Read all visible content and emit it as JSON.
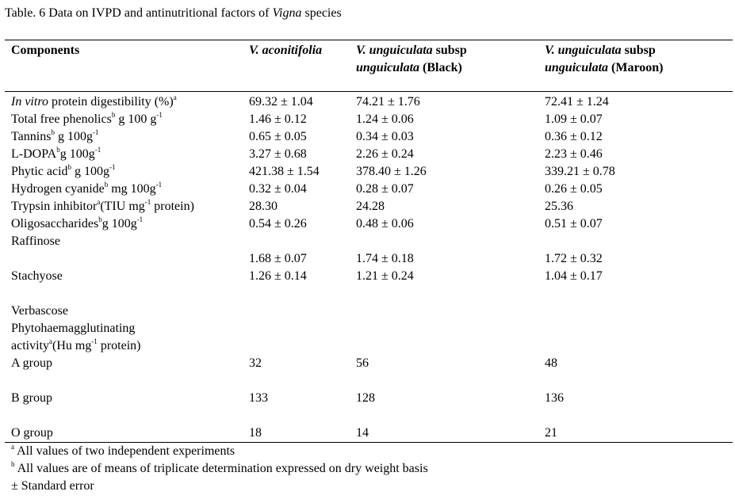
{
  "caption": {
    "prefix": "Table. 6 Data on IVPD and antinutritional factors of ",
    "italic": "Vigna",
    "suffix": " species"
  },
  "headers": {
    "components": "Components",
    "col1": {
      "italic": "V. aconitifolia"
    },
    "col2": {
      "l1_italic": "V. unguiculata",
      "l1_rest": " subsp",
      "l2_italic": "unguiculata",
      "l2_rest": " (Black)"
    },
    "col3": {
      "l1_italic": "V. unguiculata",
      "l1_rest": " subsp",
      "l2_italic": "unguiculata",
      "l2_rest": " (Maroon)"
    }
  },
  "rows": [
    {
      "l_it": "In vitro",
      "l_a": " protein digestibility (%)",
      "sup1": "a",
      "l_b": "",
      "sup2": "",
      "l_c": "",
      "v1": "69.32 ± 1.04",
      "v2": "74.21 ± 1.76",
      "v3": "72.41 ± 1.24"
    },
    {
      "l_it": "",
      "l_a": "Total free phenolics",
      "sup1": "b",
      "l_b": " g 100 g",
      "sup2": "-1",
      "l_c": "",
      "v1": "1.46 ± 0.12",
      "v2": "1.24 ± 0.06",
      "v3": "1.09 ± 0.07"
    },
    {
      "l_it": "",
      "l_a": "Tannins",
      "sup1": "b",
      "l_b": " g 100g",
      "sup2": "-1",
      "l_c": "",
      "v1": "0.65 ± 0.05",
      "v2": "0.34 ± 0.03",
      "v3": "0.36 ± 0.12"
    },
    {
      "l_it": "",
      "l_a": "L-DOPA",
      "sup1": "b",
      "l_b": "g 100g",
      "sup2": "-1",
      "l_c": "",
      "v1": "3.27 ± 0.68",
      "v2": "2.26 ± 0.24",
      "v3": "2.23 ± 0.46"
    },
    {
      "l_it": "",
      "l_a": "Phytic acid",
      "sup1": "b",
      "l_b": " g 100g",
      "sup2": "-1",
      "l_c": "",
      "v1": "421.38 ± 1.54",
      "v2": "378.40 ± 1.26",
      "v3": "339.21 ± 0.78"
    },
    {
      "l_it": "",
      "l_a": "Hydrogen cyanide",
      "sup1": "b",
      "l_b": " mg 100g",
      "sup2": "-1",
      "l_c": "",
      "v1": "0.32 ± 0.04",
      "v2": "0.28 ± 0.07",
      "v3": "0.26 ± 0.05"
    },
    {
      "l_it": "",
      "l_a": "Trypsin inhibitor",
      "sup1": "a",
      "l_b": "(TIU mg",
      "sup2": "-1",
      "l_c": " protein)",
      "v1": "28.30",
      "v2": "24.28",
      "v3": "25.36"
    },
    {
      "l_it": "",
      "l_a": "Oligosaccharides",
      "sup1": "b",
      "l_b": "g 100g",
      "sup2": "-1",
      "l_c": "",
      "v1": "0.54 ± 0.26",
      "v2": "0.48 ± 0.06",
      "v3": "0.51 ± 0.07"
    },
    {
      "l_it": "",
      "l_a": "Raffinose",
      "sup1": "",
      "l_b": "",
      "sup2": "",
      "l_c": "",
      "v1": "",
      "v2": "",
      "v3": ""
    },
    {
      "l_it": "",
      "l_a": "",
      "sup1": "",
      "l_b": "",
      "sup2": "",
      "l_c": "",
      "v1": "1.68 ± 0.07",
      "v2": "1.74 ± 0.18",
      "v3": "1.72 ± 0.32"
    },
    {
      "l_it": "",
      "l_a": "Stachyose",
      "sup1": "",
      "l_b": "",
      "sup2": "",
      "l_c": "",
      "v1": "1.26 ± 0.14",
      "v2": "1.21 ± 0.24",
      "v3": "1.04 ± 0.17"
    },
    {
      "l_it": "",
      "l_a": "",
      "sup1": "",
      "l_b": "",
      "sup2": "",
      "l_c": "",
      "v1": "",
      "v2": "",
      "v3": ""
    },
    {
      "l_it": "",
      "l_a": "Verbascose",
      "sup1": "",
      "l_b": "",
      "sup2": "",
      "l_c": "",
      "v1": "",
      "v2": "",
      "v3": ""
    },
    {
      "l_it": "",
      "l_a": "Phytohaemagglutinating",
      "sup1": "",
      "l_b": "",
      "sup2": "",
      "l_c": "",
      "v1": "",
      "v2": "",
      "v3": ""
    },
    {
      "l_it": "",
      "l_a": "activity",
      "sup1": "a",
      "l_b": "(Hu mg",
      "sup2": "-1",
      "l_c": " protein)",
      "v1": "",
      "v2": "",
      "v3": ""
    },
    {
      "l_it": "",
      "l_a": "A group",
      "sup1": "",
      "l_b": "",
      "sup2": "",
      "l_c": "",
      "v1": "32",
      "v2": "56",
      "v3": "48"
    },
    {
      "l_it": "",
      "l_a": "",
      "sup1": "",
      "l_b": "",
      "sup2": "",
      "l_c": "",
      "v1": "",
      "v2": "",
      "v3": ""
    },
    {
      "l_it": "",
      "l_a": "B group",
      "sup1": "",
      "l_b": "",
      "sup2": "",
      "l_c": "",
      "v1": "133",
      "v2": "128",
      "v3": "136"
    },
    {
      "l_it": "",
      "l_a": "",
      "sup1": "",
      "l_b": "",
      "sup2": "",
      "l_c": "",
      "v1": "",
      "v2": "",
      "v3": ""
    },
    {
      "l_it": "",
      "l_a": "O group",
      "sup1": "",
      "l_b": "",
      "sup2": "",
      "l_c": "",
      "v1": "18",
      "v2": "14",
      "v3": "21"
    }
  ],
  "footnotes": [
    {
      "sup": "a",
      "text": " All values of two independent experiments"
    },
    {
      "sup": "b",
      "text": " All values are of means of triplicate determination expressed on dry weight basis"
    },
    {
      "sup": "",
      "text": "± Standard error"
    }
  ]
}
